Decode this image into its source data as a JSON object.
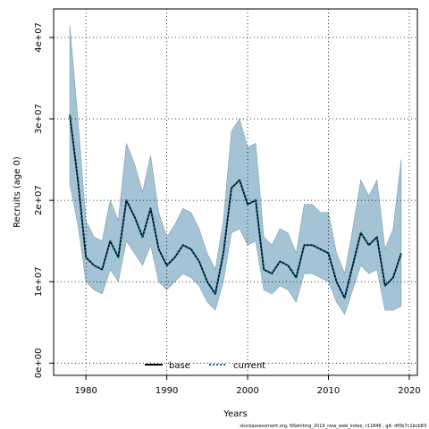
{
  "chart_data": {
    "type": "line",
    "title": "",
    "xlabel": "Years",
    "ylabel": "Recruits (age 0)",
    "xlim": [
      1976,
      2021
    ],
    "ylim": [
      -1500000,
      43500000
    ],
    "x_ticks": [
      1980,
      1990,
      2000,
      2010,
      2020
    ],
    "x_tick_labels": [
      "1980",
      "1990",
      "2000",
      "2010",
      "2020"
    ],
    "y_ticks": [
      0,
      10000000,
      20000000,
      30000000,
      40000000
    ],
    "y_tick_labels": [
      "0e+00",
      "1e+07",
      "2e+07",
      "3e+07",
      "4e+07"
    ],
    "grid": true,
    "legend": {
      "placement": "bottom-center",
      "entries": [
        {
          "label": "base",
          "color": "#000000",
          "style": "solid"
        },
        {
          "label": "current",
          "color": "#00688b",
          "style": "dotted"
        }
      ]
    },
    "x": [
      1978,
      1979,
      1980,
      1981,
      1982,
      1983,
      1984,
      1985,
      1986,
      1987,
      1988,
      1989,
      1990,
      1991,
      1992,
      1993,
      1994,
      1995,
      1996,
      1997,
      1998,
      1999,
      2000,
      2001,
      2002,
      2003,
      2004,
      2005,
      2006,
      2007,
      2008,
      2009,
      2010,
      2011,
      2012,
      2013,
      2014,
      2015,
      2016,
      2017,
      2018,
      2019
    ],
    "series": [
      {
        "name": "base",
        "color": "#000000",
        "values": [
          30500000,
          22500000,
          13000000,
          12000000,
          11500000,
          15000000,
          13000000,
          20000000,
          18000000,
          15500000,
          19000000,
          14000000,
          12000000,
          13000000,
          14500000,
          14000000,
          12500000,
          10000000,
          8500000,
          13500000,
          21500000,
          22500000,
          19500000,
          20000000,
          11500000,
          11000000,
          12500000,
          12000000,
          10500000,
          14500000,
          14500000,
          14000000,
          13500000,
          10000000,
          8000000,
          12000000,
          16000000,
          14500000,
          15500000,
          9500000,
          10500000,
          13500000
        ]
      },
      {
        "name": "current",
        "color": "#00688b",
        "values": [
          30500000,
          22500000,
          13000000,
          12000000,
          11500000,
          15000000,
          13000000,
          20000000,
          18000000,
          15500000,
          19000000,
          14000000,
          12000000,
          13000000,
          14500000,
          14000000,
          12500000,
          10000000,
          8500000,
          13500000,
          21500000,
          22500000,
          19500000,
          20000000,
          11500000,
          11000000,
          12500000,
          12000000,
          10500000,
          14500000,
          14500000,
          14000000,
          13500000,
          10000000,
          8000000,
          12000000,
          16000000,
          14500000,
          15500000,
          9500000,
          10500000,
          13500000
        ]
      }
    ],
    "band": {
      "color": "#a4c4d6",
      "lower": [
        22000000,
        17000000,
        10000000,
        9000000,
        8500000,
        11500000,
        10000000,
        15000000,
        13500000,
        12000000,
        14500000,
        10000000,
        9000000,
        10000000,
        11000000,
        10500000,
        9500000,
        7500000,
        6500000,
        10000000,
        16000000,
        16500000,
        14500000,
        15000000,
        9000000,
        8500000,
        9500000,
        9000000,
        7500000,
        11000000,
        11000000,
        10500000,
        10000000,
        7500000,
        6000000,
        9000000,
        12000000,
        11000000,
        11500000,
        6500000,
        6500000,
        7000000
      ],
      "upper": [
        41500000,
        30000000,
        17500000,
        15500000,
        15000000,
        20000000,
        17500000,
        27000000,
        24500000,
        21000000,
        25500000,
        18500000,
        15500000,
        17000000,
        19000000,
        18500000,
        16500000,
        13500000,
        11500000,
        17500000,
        28500000,
        30000000,
        26500000,
        27000000,
        15500000,
        14500000,
        16500000,
        16000000,
        13500000,
        19500000,
        19500000,
        18500000,
        18500000,
        13500000,
        11000000,
        16500000,
        22500000,
        20500000,
        22500000,
        14000000,
        16500000,
        25000000
      ]
    },
    "footer": "stockassessment.org, NSehiting_2019_new_web_index, r11846 , git: df0b7c1bcb83"
  }
}
